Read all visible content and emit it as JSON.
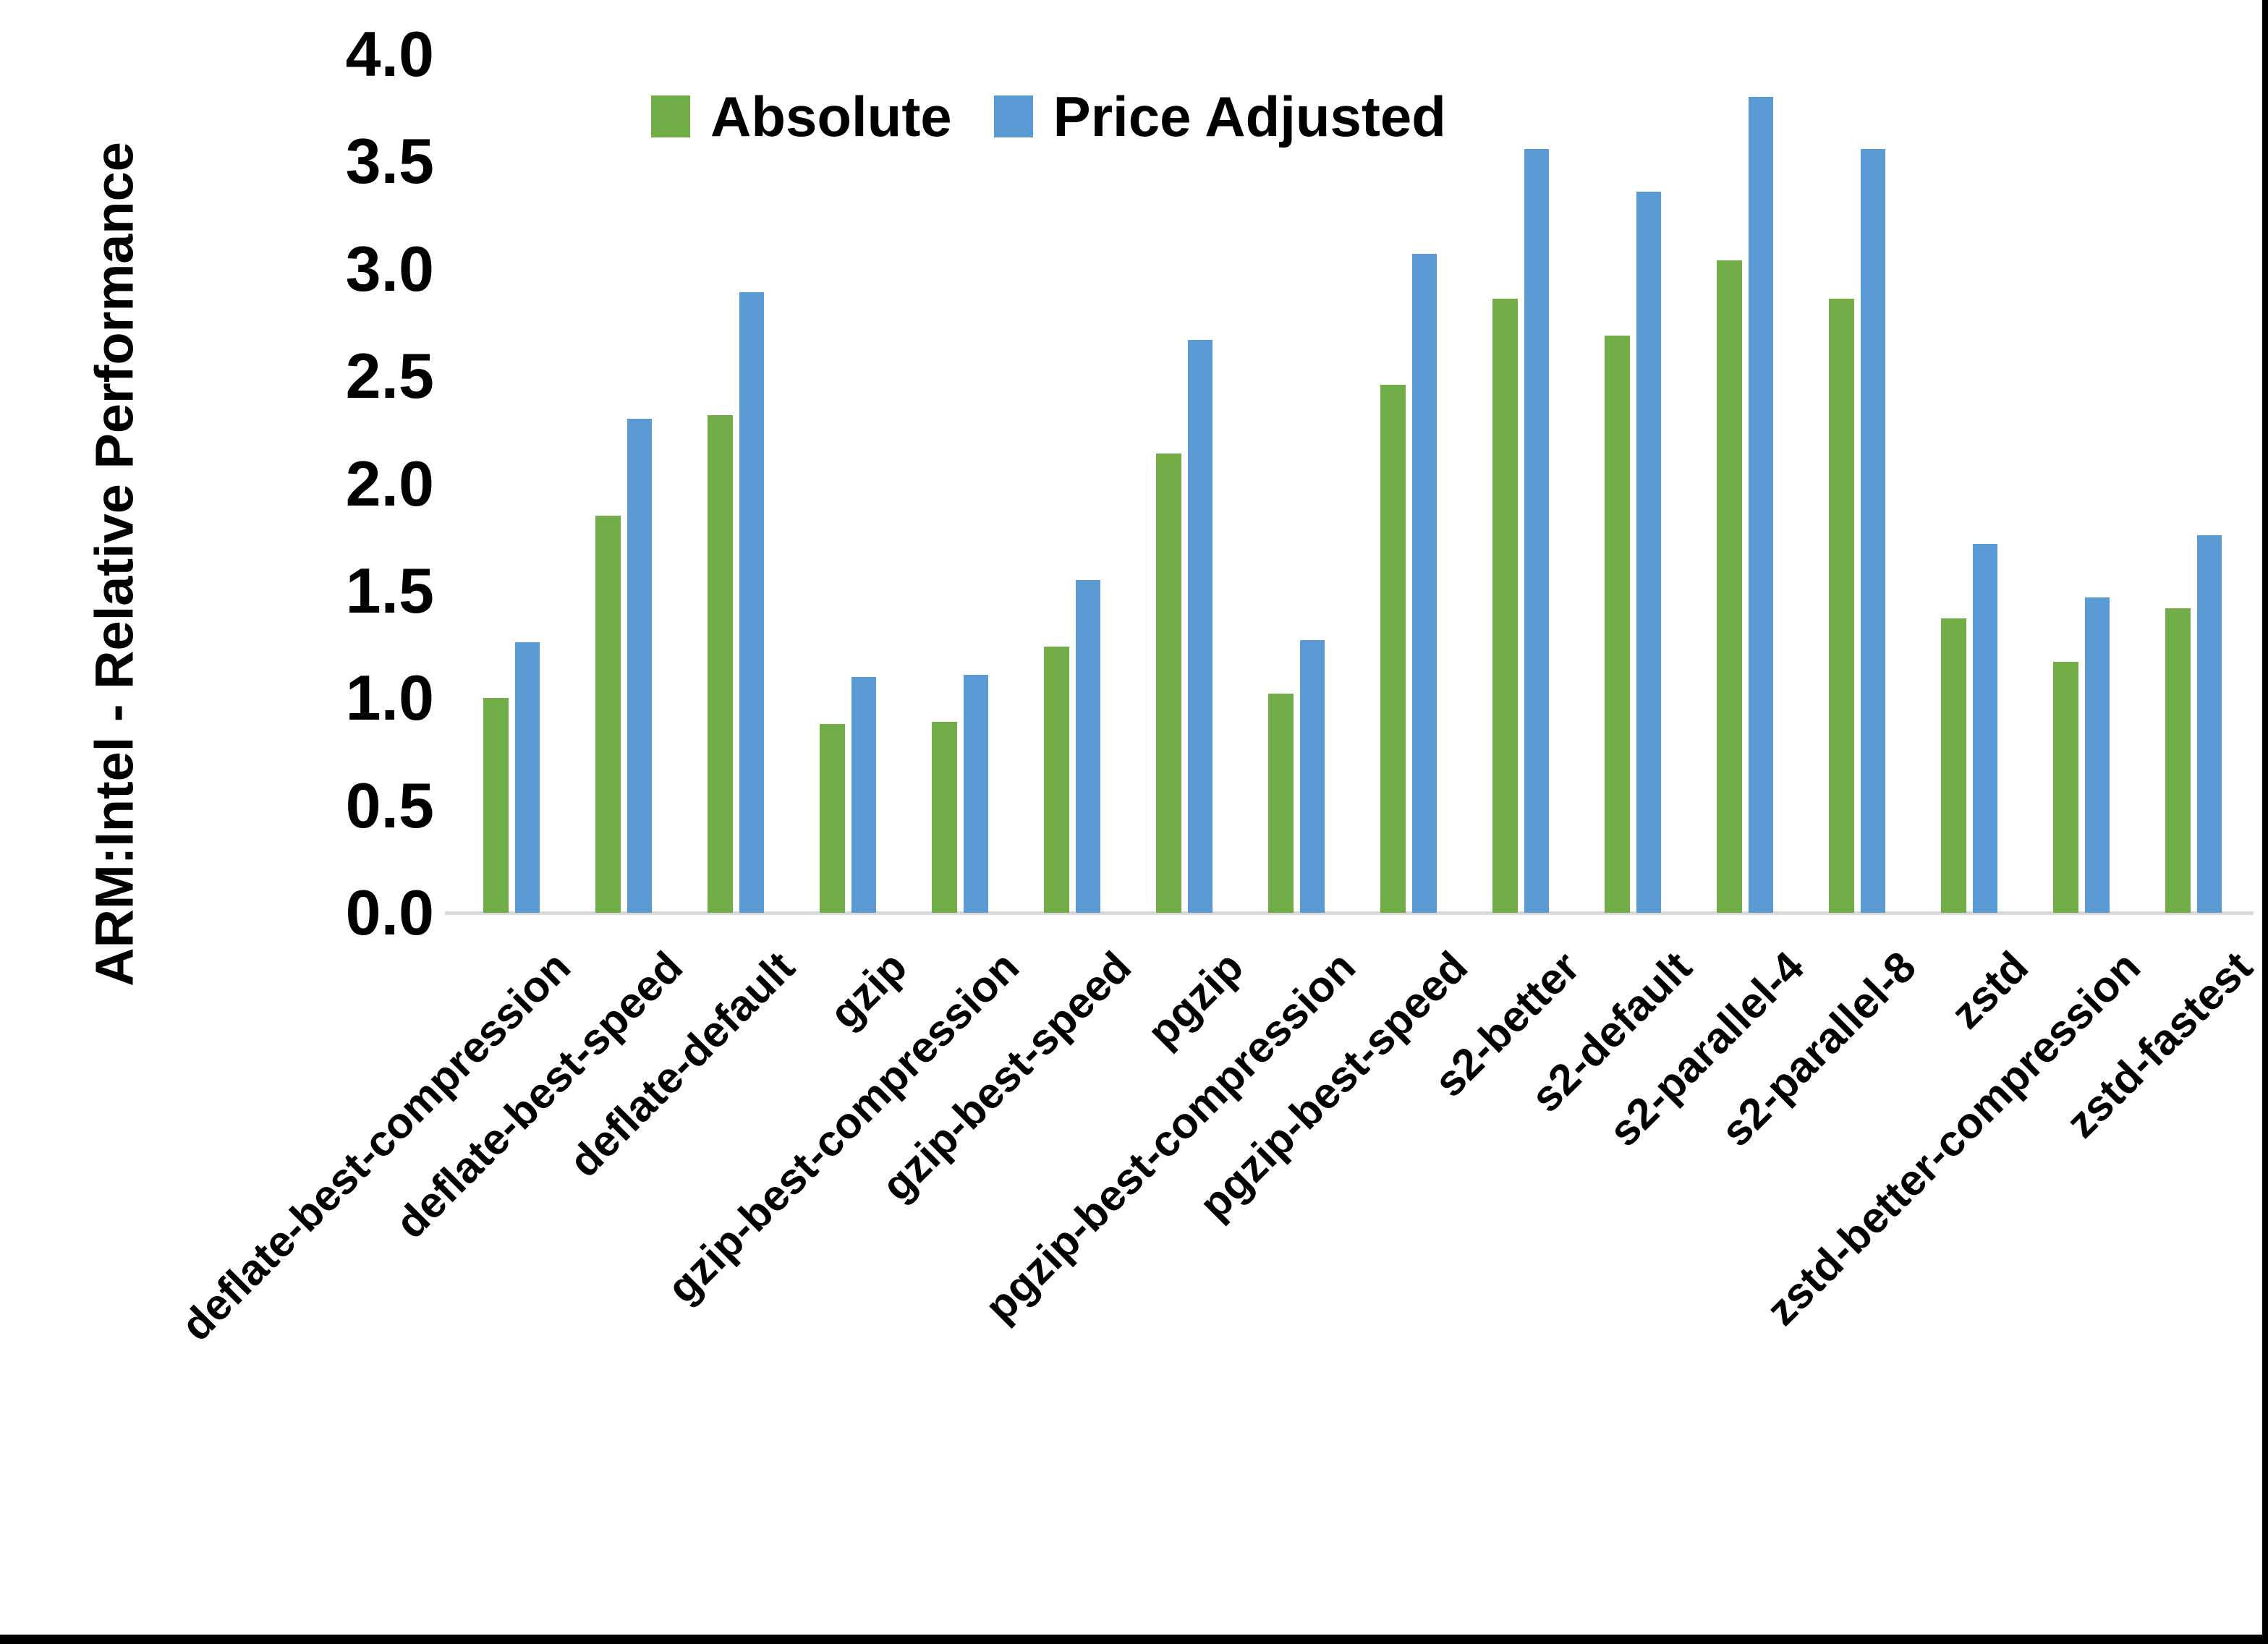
{
  "chart_data": {
    "type": "bar",
    "title": "",
    "xlabel": "",
    "ylabel": "ARM:Intel - Relative Performance",
    "ylim": [
      0.0,
      4.0
    ],
    "ytick_step": 0.5,
    "yticks": [
      "0.0",
      "0.5",
      "1.0",
      "1.5",
      "2.0",
      "2.5",
      "3.0",
      "3.5",
      "4.0"
    ],
    "grid": false,
    "legend_position": "top-center",
    "axis_line_color": "#d9d9d9",
    "categories": [
      "deflate-best-compression",
      "deflate-best-speed",
      "deflate-default",
      "gzip",
      "gzip-best-compression",
      "gzip-best-speed",
      "pgzip",
      "pgzip-best-compression",
      "pgzip-best-speed",
      "s2-better",
      "s2-default",
      "s2-parallel-4",
      "s2-parallel-8",
      "zstd",
      "zstd-better-compression",
      "zstd-fastest"
    ],
    "series": [
      {
        "name": "Absolute",
        "color": "#70AD47",
        "values": [
          1.0,
          1.85,
          2.32,
          0.88,
          0.89,
          1.24,
          2.14,
          1.02,
          2.46,
          2.86,
          2.69,
          3.04,
          2.86,
          1.37,
          1.17,
          1.42
        ]
      },
      {
        "name": "Price Adjusted",
        "color": "#5B9BD5",
        "values": [
          1.26,
          2.3,
          2.89,
          1.1,
          1.11,
          1.55,
          2.67,
          1.27,
          3.07,
          3.56,
          3.36,
          3.8,
          3.56,
          1.72,
          1.47,
          1.76
        ]
      }
    ]
  },
  "legend": {
    "absolute_label": "Absolute",
    "price_adjusted_label": "Price Adjusted"
  }
}
